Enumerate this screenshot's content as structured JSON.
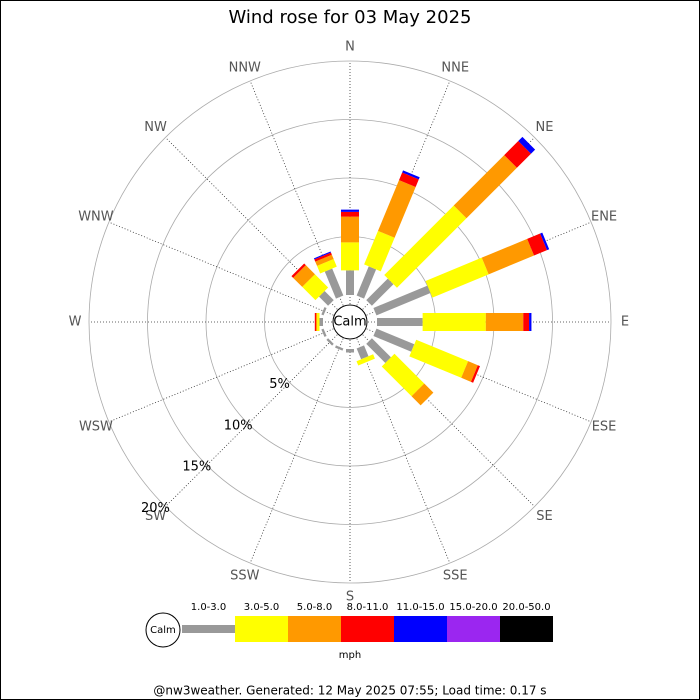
{
  "chart_data": {
    "type": "windrose",
    "title": "Wind rose for 03 May 2025",
    "directions": [
      "N",
      "NNE",
      "NE",
      "ENE",
      "E",
      "ESE",
      "SE",
      "SSE",
      "S",
      "SSW",
      "SW",
      "WSW",
      "W",
      "WNW",
      "NW",
      "NNW"
    ],
    "series": [
      {
        "name": "1.0-3.0",
        "color": "#999999",
        "values": [
          2.1,
          2.7,
          2.6,
          5.0,
          3.9,
          3.5,
          2.3,
          1.0,
          0.3,
          0.2,
          0.2,
          0.2,
          0.3,
          0.2,
          1.1,
          2.5
        ]
      },
      {
        "name": "3.0-5.0",
        "color": "#ffff00",
        "values": [
          2.4,
          3.1,
          8.4,
          5.2,
          5.4,
          4.8,
          3.6,
          0.4,
          0,
          0,
          0,
          0,
          0.2,
          0,
          1.6,
          0.7
        ]
      },
      {
        "name": "5.0-8.0",
        "color": "#ff9900",
        "values": [
          2.2,
          4.7,
          6.1,
          4.2,
          3.2,
          0.9,
          1.1,
          0,
          0,
          0,
          0,
          0,
          0.1,
          0,
          1.1,
          0.4
        ]
      },
      {
        "name": "8.0-11.0",
        "color": "#ff0000",
        "values": [
          0.4,
          0.7,
          1.7,
          1.2,
          0.5,
          0.2,
          0,
          0,
          0,
          0,
          0,
          0,
          0.1,
          0,
          0.2,
          0.2
        ]
      },
      {
        "name": "11.0-15.0",
        "color": "#0000ff",
        "values": [
          0.2,
          0.2,
          0.5,
          0.2,
          0.2,
          0,
          0,
          0,
          0,
          0,
          0,
          0,
          0,
          0,
          0,
          0.1
        ]
      },
      {
        "name": "15.0-20.0",
        "color": "#9b26f0",
        "values": [
          0,
          0,
          0,
          0,
          0,
          0,
          0,
          0,
          0,
          0,
          0,
          0,
          0,
          0,
          0,
          0
        ]
      },
      {
        "name": "20.0-50.0",
        "color": "#000000",
        "values": [
          0,
          0,
          0,
          0,
          0,
          0,
          0,
          0,
          0,
          0,
          0,
          0,
          0,
          0,
          0,
          0
        ]
      }
    ],
    "rlim": [
      0,
      20
    ],
    "rticks": [
      {
        "value": 5,
        "label": "5%"
      },
      {
        "value": 10,
        "label": "10%"
      },
      {
        "value": 15,
        "label": "15%"
      },
      {
        "value": 20,
        "label": "20%"
      }
    ],
    "calm_label": "Calm",
    "unit": "mph",
    "footer": "@nw3weather.  Generated: 12 May 2025 07:55; Load time: 0.17 s"
  }
}
